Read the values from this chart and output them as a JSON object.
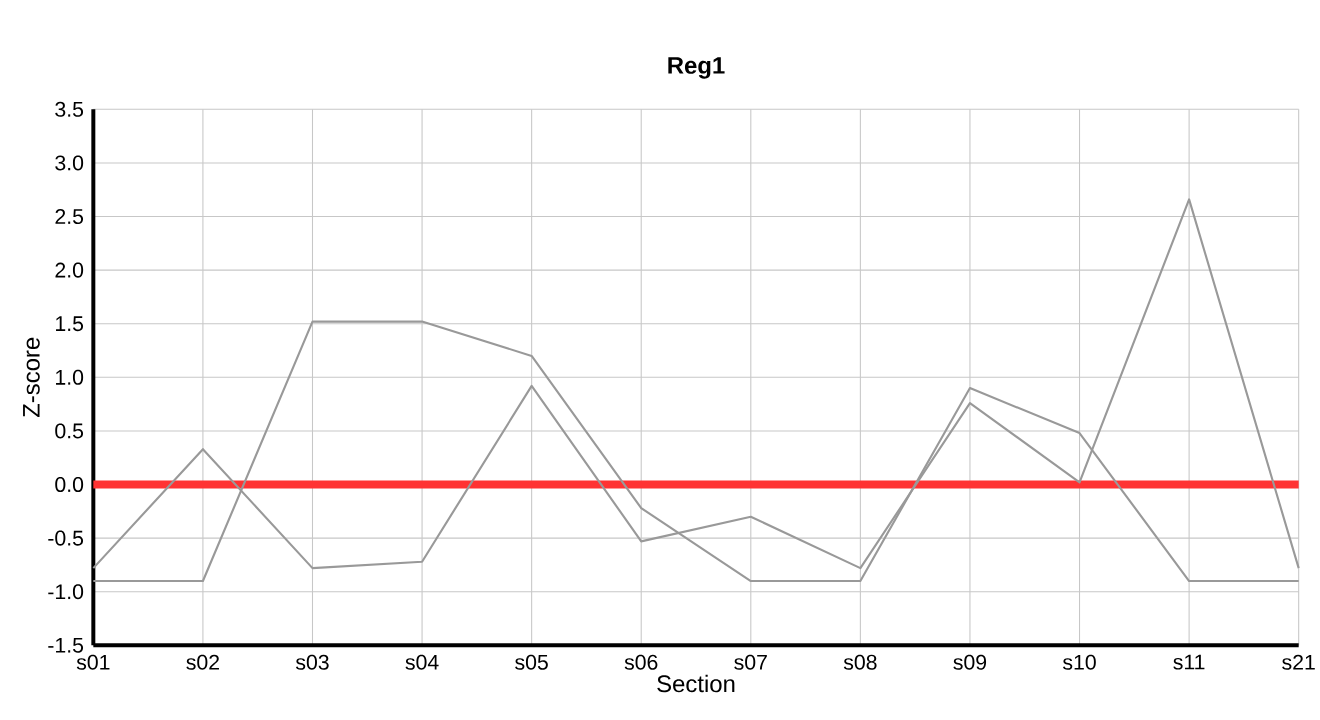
{
  "chart_data": {
    "type": "line",
    "title": "Reg1",
    "xlabel": "Section",
    "ylabel": "Z-score",
    "categories": [
      "s01",
      "s02",
      "s03",
      "s04",
      "s05",
      "s06",
      "s07",
      "s08",
      "s09",
      "s10",
      "s11",
      "s21"
    ],
    "series": [
      {
        "color": "#999999",
        "values": [
          -0.9,
          -0.9,
          1.52,
          1.52,
          1.2,
          -0.22,
          -0.9,
          -0.9,
          0.9,
          0.48,
          -0.9,
          -0.9
        ]
      },
      {
        "color": "#999999",
        "values": [
          -0.78,
          0.33,
          -0.78,
          -0.72,
          0.92,
          -0.53,
          -0.3,
          -0.78,
          0.76,
          0.02,
          2.66,
          -0.78
        ]
      }
    ],
    "ylim": [
      -1.5,
      3.5
    ],
    "yticks": [
      {
        "value": -1.5,
        "label": "-1.5"
      },
      {
        "value": -1.0,
        "label": "-1.0"
      },
      {
        "value": -0.5,
        "label": "-0.5"
      },
      {
        "value": 0,
        "label": "0.0"
      },
      {
        "value": 0.5,
        "label": "0.5"
      },
      {
        "value": 1.0,
        "label": "1.0"
      },
      {
        "value": 1.5,
        "label": "1.5"
      },
      {
        "value": 2.0,
        "label": "2.0"
      },
      {
        "value": 2.5,
        "label": "2.5"
      },
      {
        "value": 3.0,
        "label": "3.0"
      },
      {
        "value": 3.5,
        "label": "3.5"
      }
    ],
    "grid": true,
    "marker": "none",
    "line_style": "solid",
    "ref_lines": [
      {
        "axis": "y",
        "value": 0,
        "color": "#ff3333"
      }
    ]
  }
}
